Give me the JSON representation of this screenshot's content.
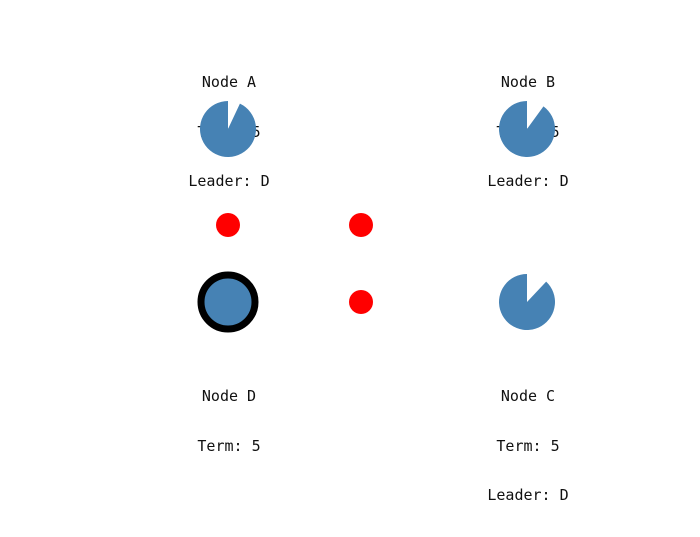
{
  "nodes": {
    "a": {
      "name": "Node A",
      "term": "Term: 5",
      "leader": "Leader: D",
      "timeout_remaining": 0.93,
      "is_leader": false
    },
    "b": {
      "name": "Node B",
      "term": "Term: 5",
      "leader": "Leader: D",
      "timeout_remaining": 0.9,
      "is_leader": false
    },
    "c": {
      "name": "Node C",
      "term": "Term: 5",
      "leader": "Leader: D",
      "timeout_remaining": 0.88,
      "is_leader": false
    },
    "d": {
      "name": "Node D",
      "term": "Term: 5",
      "is_leader": true
    }
  },
  "colors": {
    "node_fill": "#4682b4",
    "leader_ring": "#000000",
    "message": "#ff0000",
    "background": "#ffffff"
  },
  "messages": [
    {
      "from": "D",
      "to": "A"
    },
    {
      "from": "D",
      "to": "B"
    },
    {
      "from": "D",
      "to": "C"
    }
  ]
}
